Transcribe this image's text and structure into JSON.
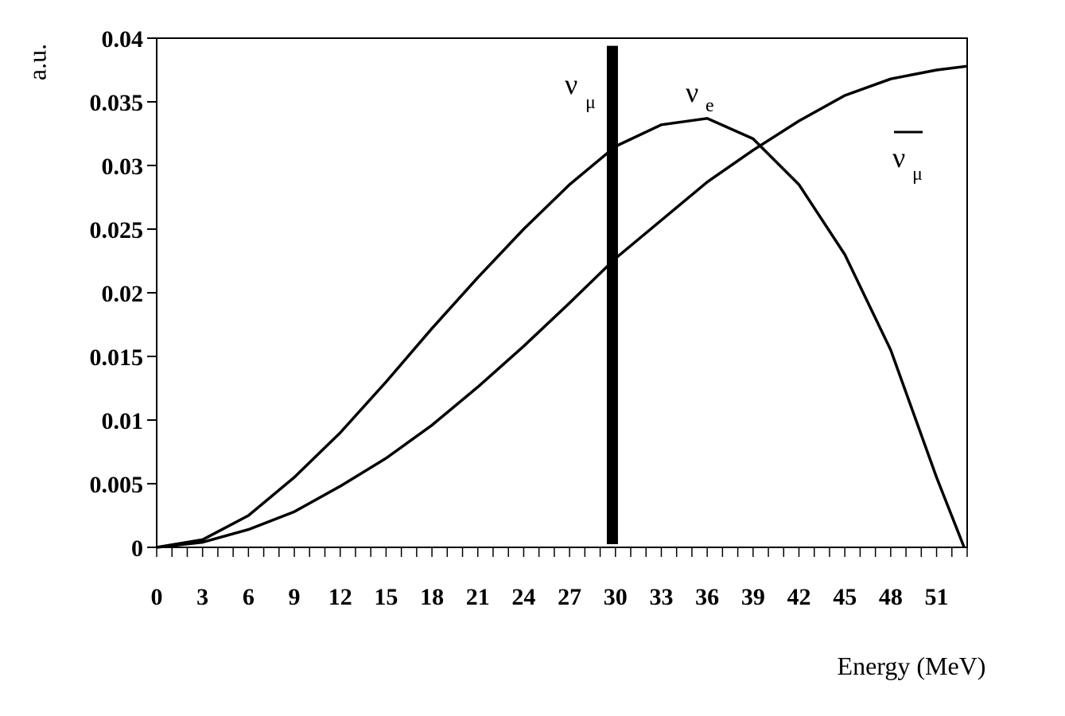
{
  "chart_data": {
    "type": "line",
    "xlabel": "Energy (MeV)",
    "ylabel": "a.u.",
    "xlim": [
      0,
      53
    ],
    "ylim": [
      0,
      0.04
    ],
    "x_ticks": [
      0,
      3,
      6,
      9,
      12,
      15,
      18,
      21,
      24,
      27,
      30,
      33,
      36,
      39,
      42,
      45,
      48,
      51
    ],
    "y_ticks": [
      0,
      0.005,
      0.01,
      0.015,
      0.02,
      0.025,
      0.03,
      0.035,
      0.04
    ],
    "x_tick_labels": [
      "0",
      "3",
      "6",
      "9",
      "12",
      "15",
      "18",
      "21",
      "24",
      "27",
      "30",
      "33",
      "36",
      "39",
      "42",
      "45",
      "48",
      "51"
    ],
    "y_tick_labels": [
      "0",
      "0.005",
      "0.01",
      "0.015",
      "0.02",
      "0.025",
      "0.03",
      "0.035",
      "0.04"
    ],
    "grid": false,
    "series": [
      {
        "name": "ν_e",
        "label_main": "ν",
        "label_sub": "e",
        "style": "line",
        "x": [
          0,
          3,
          6,
          9,
          12,
          15,
          18,
          21,
          24,
          27,
          30,
          33,
          36,
          39,
          42,
          45,
          48,
          51,
          52.8
        ],
        "y": [
          0,
          0.0006,
          0.0025,
          0.0055,
          0.009,
          0.013,
          0.0172,
          0.0212,
          0.025,
          0.0285,
          0.0315,
          0.0332,
          0.0337,
          0.0321,
          0.0285,
          0.023,
          0.0155,
          0.0055,
          0
        ]
      },
      {
        "name": "ν̄_μ",
        "label_main": "ν",
        "label_sub": "μ",
        "overbar": true,
        "style": "line",
        "x": [
          0,
          3,
          6,
          9,
          12,
          15,
          18,
          21,
          24,
          27,
          30,
          33,
          36,
          39,
          42,
          45,
          48,
          51,
          53
        ],
        "y": [
          0,
          0.0004,
          0.0014,
          0.0028,
          0.0048,
          0.007,
          0.0096,
          0.0126,
          0.0158,
          0.0192,
          0.0227,
          0.0257,
          0.0287,
          0.0312,
          0.0335,
          0.0355,
          0.0368,
          0.0375,
          0.0378
        ]
      },
      {
        "name": "ν_μ",
        "label_main": "ν",
        "label_sub": "μ",
        "style": "monoenergetic-line",
        "x": [
          29.8,
          29.8
        ],
        "y": [
          0,
          0.0394
        ]
      }
    ]
  }
}
